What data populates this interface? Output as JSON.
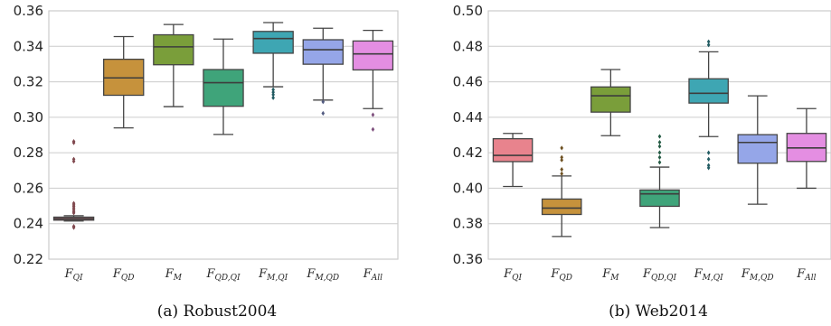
{
  "chart_data": [
    {
      "type": "box",
      "caption": "(a) Robust2004",
      "ylim": [
        0.22,
        0.36
      ],
      "yticks": [
        "0.22",
        "0.24",
        "0.26",
        "0.28",
        "0.30",
        "0.32",
        "0.34",
        "0.36"
      ],
      "grid": "y",
      "categories": [
        {
          "main": "F",
          "sub": "QI"
        },
        {
          "main": "F",
          "sub": "QD"
        },
        {
          "main": "F",
          "sub": "M"
        },
        {
          "main": "F",
          "sub": "QD,QI"
        },
        {
          "main": "F",
          "sub": "M,QI"
        },
        {
          "main": "F",
          "sub": "M,QD"
        },
        {
          "main": "F",
          "sub": "All"
        }
      ],
      "boxes": [
        {
          "q1": 0.242,
          "median": 0.2428,
          "q3": 0.2437,
          "wlo": 0.2415,
          "whi": 0.2445,
          "fliers": [
            0.2864,
            0.2856,
            0.2764,
            0.2752,
            0.2515,
            0.2506,
            0.2498,
            0.2488,
            0.2478,
            0.2468,
            0.246,
            0.2385,
            0.2378
          ]
        },
        {
          "q1": 0.3124,
          "median": 0.3222,
          "q3": 0.3327,
          "wlo": 0.294,
          "whi": 0.3455,
          "fliers": []
        },
        {
          "q1": 0.3296,
          "median": 0.3397,
          "q3": 0.3465,
          "wlo": 0.306,
          "whi": 0.3523,
          "fliers": []
        },
        {
          "q1": 0.3062,
          "median": 0.3195,
          "q3": 0.3269,
          "wlo": 0.2903,
          "whi": 0.3441,
          "fliers": []
        },
        {
          "q1": 0.3361,
          "median": 0.3444,
          "q3": 0.3484,
          "wlo": 0.3172,
          "whi": 0.3534,
          "fliers": [
            0.3156,
            0.3141,
            0.3127,
            0.311
          ]
        },
        {
          "q1": 0.3299,
          "median": 0.3381,
          "q3": 0.3437,
          "wlo": 0.3097,
          "whi": 0.3502,
          "fliers": [
            0.3087,
            0.3022
          ]
        },
        {
          "q1": 0.3267,
          "median": 0.3357,
          "q3": 0.343,
          "wlo": 0.3049,
          "whi": 0.349,
          "fliers": [
            0.3014,
            0.2932
          ]
        }
      ]
    },
    {
      "type": "box",
      "caption": "(b) Web2014",
      "ylim": [
        0.36,
        0.5
      ],
      "yticks": [
        "0.36",
        "0.38",
        "0.40",
        "0.42",
        "0.44",
        "0.46",
        "0.48",
        "0.50"
      ],
      "grid": "y",
      "categories": [
        {
          "main": "F",
          "sub": "QI"
        },
        {
          "main": "F",
          "sub": "QD"
        },
        {
          "main": "F",
          "sub": "M"
        },
        {
          "main": "F",
          "sub": "QD,QI"
        },
        {
          "main": "F",
          "sub": "M,QI"
        },
        {
          "main": "F",
          "sub": "M,QD"
        },
        {
          "main": "F",
          "sub": "All"
        }
      ],
      "boxes": [
        {
          "q1": 0.415,
          "median": 0.4185,
          "q3": 0.4279,
          "wlo": 0.401,
          "whi": 0.4309,
          "fliers": []
        },
        {
          "q1": 0.3852,
          "median": 0.3888,
          "q3": 0.3939,
          "wlo": 0.3728,
          "whi": 0.4069,
          "fliers": [
            0.4082,
            0.4106,
            0.4159,
            0.4174,
            0.4227
          ]
        },
        {
          "q1": 0.4429,
          "median": 0.4521,
          "q3": 0.4571,
          "wlo": 0.4296,
          "whi": 0.4669,
          "fliers": []
        },
        {
          "q1": 0.3898,
          "median": 0.3968,
          "q3": 0.399,
          "wlo": 0.3778,
          "whi": 0.4119,
          "fliers": [
            0.4146,
            0.4174,
            0.4201,
            0.4236,
            0.4259,
            0.4292
          ]
        },
        {
          "q1": 0.448,
          "median": 0.4535,
          "q3": 0.4617,
          "wlo": 0.4291,
          "whi": 0.4769,
          "fliers": [
            0.42,
            0.4164,
            0.4129,
            0.4115,
            0.4808,
            0.4826
          ]
        },
        {
          "q1": 0.4141,
          "median": 0.4258,
          "q3": 0.4302,
          "wlo": 0.391,
          "whi": 0.4521,
          "fliers": []
        },
        {
          "q1": 0.4151,
          "median": 0.4227,
          "q3": 0.4309,
          "wlo": 0.4,
          "whi": 0.4449,
          "fliers": []
        }
      ]
    }
  ],
  "colors": [
    "#e8838d",
    "#c6923c",
    "#7a9e3a",
    "#3fa47a",
    "#3ea6b3",
    "#95a6e8",
    "#e48ee2"
  ],
  "median_color": "#3d3d3d",
  "grid_color": "#cccccc",
  "frame_color": "#cccccc"
}
